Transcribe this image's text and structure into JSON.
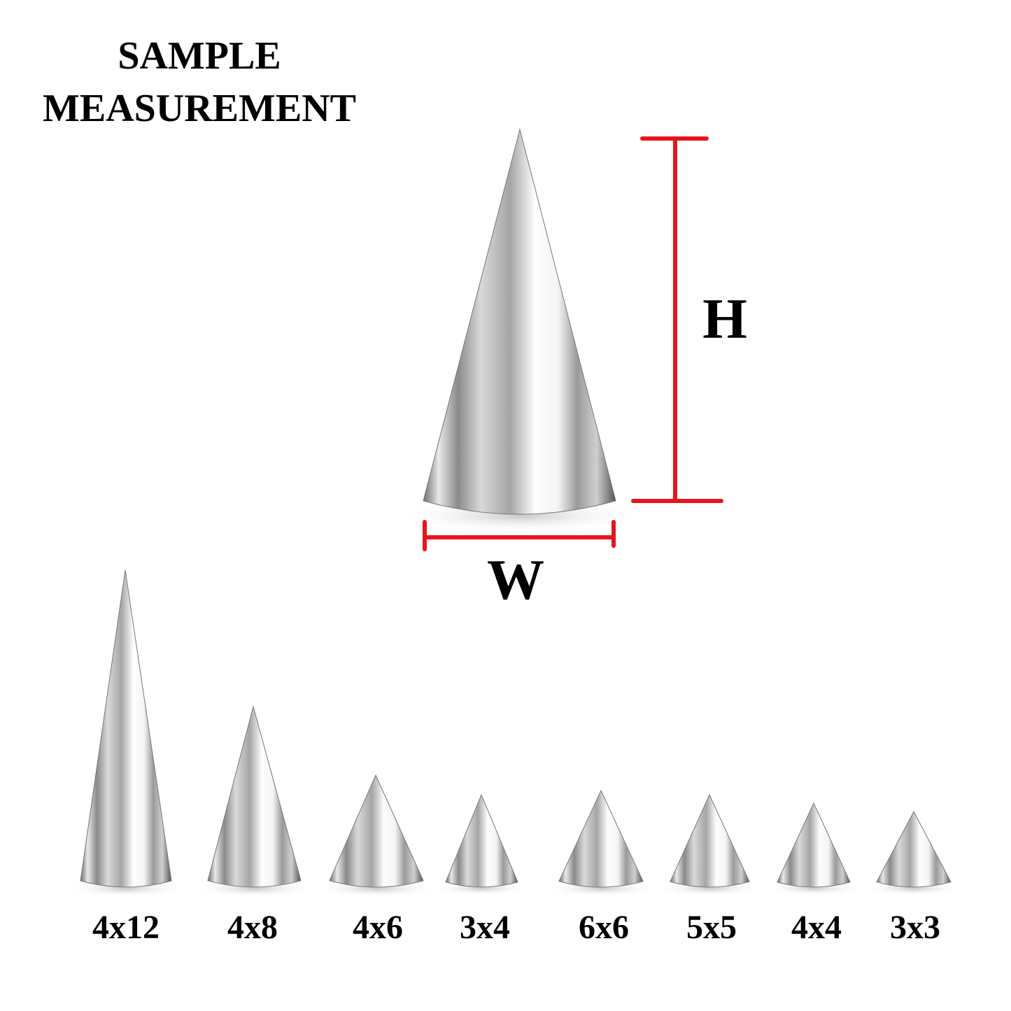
{
  "title": {
    "line1": "SAMPLE",
    "line2": "MEASUREMENT"
  },
  "dimension_labels": {
    "height": "H",
    "width": "W"
  },
  "accent_color": "#e8141c",
  "sizes": [
    "4x12",
    "4x8",
    "4x6",
    "3x4",
    "6x6",
    "5x5",
    "4x4",
    "3x3"
  ]
}
